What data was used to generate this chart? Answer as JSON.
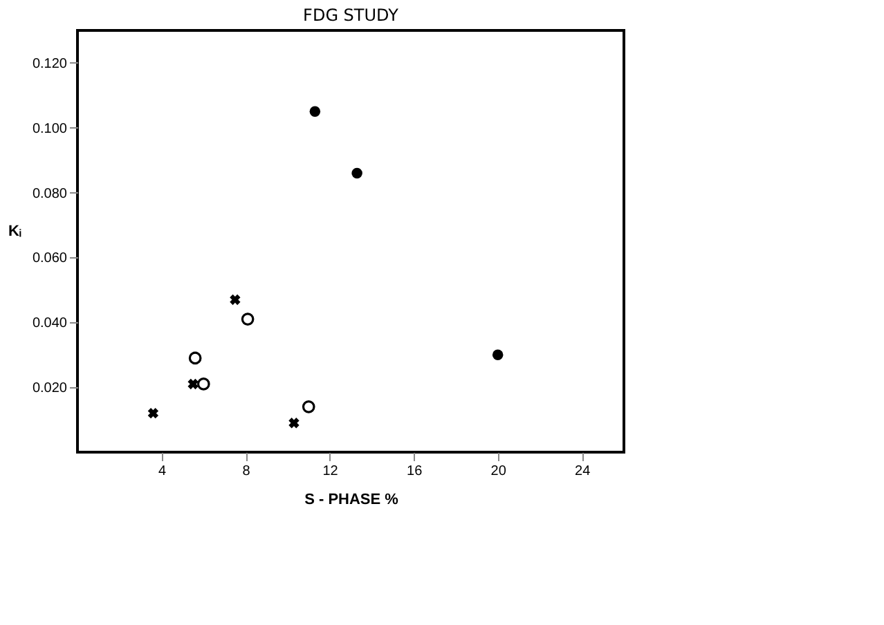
{
  "chart_data": {
    "type": "scatter",
    "title": "FDG STUDY",
    "xlabel": "S - PHASE %",
    "ylabel": "Kᵢ",
    "xlim": [
      0,
      26
    ],
    "xticks": [
      4,
      8,
      12,
      16,
      20,
      24
    ],
    "ylim": [
      0,
      0.13
    ],
    "yticks": [
      {
        "value": 0.02,
        "label": "0.020"
      },
      {
        "value": 0.04,
        "label": "0.040"
      },
      {
        "value": 0.06,
        "label": "0.060"
      },
      {
        "value": 0.08,
        "label": "0.080"
      },
      {
        "value": 0.1,
        "label": "0.100"
      },
      {
        "value": 0.12,
        "label": "0.120"
      }
    ],
    "grid": false,
    "series": [
      {
        "color": "#000000",
        "marker": "circle",
        "x": [
          11.3,
          13.3,
          20.0
        ],
        "values": [
          0.105,
          0.086,
          0.03
        ]
      },
      {
        "color": "#000000",
        "marker": "circle",
        "x": [
          5.6,
          6.0,
          8.1,
          11.0
        ],
        "values": [
          0.029,
          0.021,
          0.041,
          0.014
        ]
      },
      {
        "color": "#000000",
        "marker": "cross",
        "x": [
          3.6,
          5.5,
          7.5,
          10.3
        ],
        "values": [
          0.012,
          0.021,
          0.047,
          0.009
        ]
      }
    ]
  }
}
